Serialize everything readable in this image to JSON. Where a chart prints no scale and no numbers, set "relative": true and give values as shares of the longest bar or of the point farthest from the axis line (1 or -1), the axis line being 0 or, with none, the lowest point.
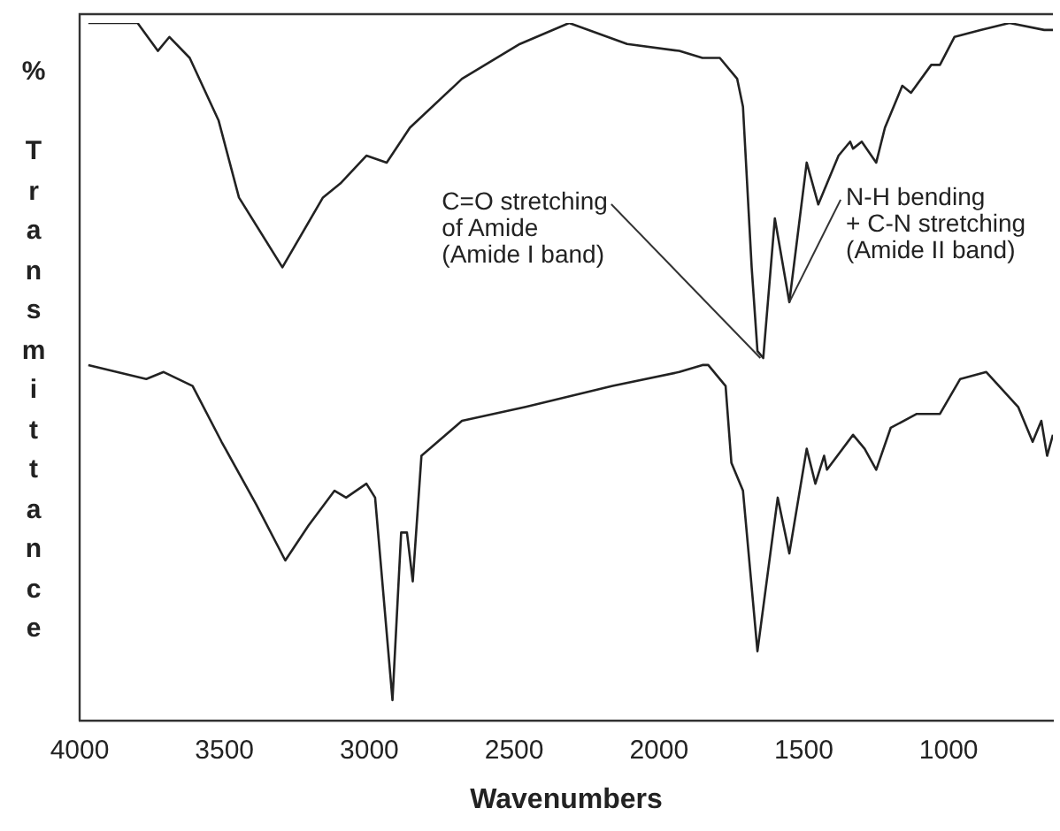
{
  "chart_data": {
    "type": "line",
    "xlabel": "Wavenumbers",
    "ylabel": "% Transmittance",
    "relative": true,
    "grid": false,
    "legend": false,
    "marker": "none",
    "line_style": "solid",
    "xlim": [
      4000,
      640
    ],
    "xticks": [
      4000,
      3500,
      3000,
      2500,
      2000,
      1500,
      1000
    ],
    "annotations": [
      {
        "text": "C=O stretching\nof Amide\n(Amide I band)",
        "x": 1650,
        "y": 0.52
      },
      {
        "text": "N-H bending\n+ C-N stretching\n(Amide II band)",
        "x": 1550,
        "y": 0.6
      }
    ],
    "series": [
      {
        "color": "#222222",
        "x": [
          3970,
          3800,
          3730,
          3690,
          3620,
          3520,
          3450,
          3300,
          3160,
          3100,
          3010,
          2940,
          2860,
          2680,
          2480,
          2310,
          2110,
          1930,
          1850,
          1790,
          1730,
          1710,
          1680,
          1660,
          1640,
          1600,
          1550,
          1490,
          1450,
          1420,
          1380,
          1340,
          1330,
          1300,
          1250,
          1220,
          1160,
          1130,
          1060,
          1030,
          980,
          890,
          790,
          670,
          640
        ],
        "values": [
          1.0,
          1.0,
          0.96,
          0.98,
          0.95,
          0.86,
          0.75,
          0.65,
          0.75,
          0.77,
          0.81,
          0.8,
          0.85,
          0.92,
          0.97,
          1.0,
          0.97,
          0.96,
          0.95,
          0.95,
          0.92,
          0.88,
          0.65,
          0.53,
          0.52,
          0.72,
          0.6,
          0.8,
          0.74,
          0.77,
          0.81,
          0.83,
          0.82,
          0.83,
          0.8,
          0.85,
          0.91,
          0.9,
          0.94,
          0.94,
          0.98,
          0.99,
          1.0,
          0.99,
          0.99
        ]
      },
      {
        "color": "#222222",
        "x": [
          3970,
          3770,
          3710,
          3610,
          3510,
          3390,
          3290,
          3210,
          3120,
          3080,
          3010,
          2980,
          2920,
          2890,
          2870,
          2850,
          2820,
          2680,
          2460,
          2160,
          1930,
          1850,
          1830,
          1770,
          1750,
          1710,
          1660,
          1590,
          1550,
          1490,
          1460,
          1430,
          1420,
          1330,
          1290,
          1250,
          1200,
          1110,
          1030,
          960,
          870,
          760,
          710,
          680,
          660,
          640
        ],
        "values": [
          0.51,
          0.49,
          0.5,
          0.48,
          0.4,
          0.31,
          0.23,
          0.28,
          0.33,
          0.32,
          0.34,
          0.32,
          0.03,
          0.27,
          0.27,
          0.2,
          0.38,
          0.43,
          0.45,
          0.48,
          0.5,
          0.51,
          0.51,
          0.48,
          0.37,
          0.33,
          0.1,
          0.32,
          0.24,
          0.39,
          0.34,
          0.38,
          0.36,
          0.41,
          0.39,
          0.36,
          0.42,
          0.44,
          0.44,
          0.49,
          0.5,
          0.45,
          0.4,
          0.43,
          0.38,
          0.41
        ]
      }
    ]
  }
}
